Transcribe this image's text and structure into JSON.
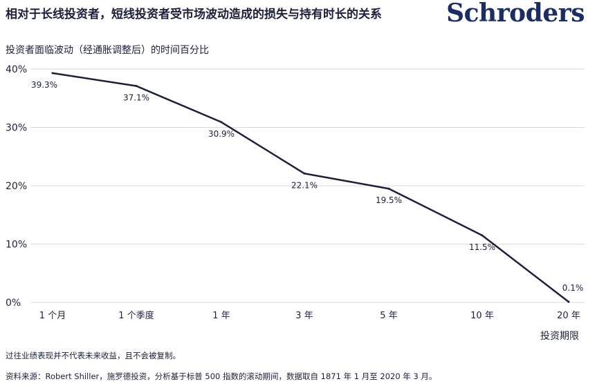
{
  "header": {
    "title": "相对于长线投资者，短线投资者受市场波动造成的损失与持有时长的关系",
    "logo_text": "Schroders"
  },
  "footer": {
    "note": "过往业绩表现并不代表未来收益，且不会被复制。",
    "source": "资料来源：Robert Shiller，施罗德投资，分析基于标普 500 指数的滚动期间，数据取自 1871 年 1 月至 2020 年 3 月。"
  },
  "colors": {
    "line": "#1b1f3b",
    "grid": "#d9d9d9",
    "text": "#1b1f3b",
    "logo": "#1b2d62"
  },
  "chart_data": {
    "type": "line",
    "ylabel": "投资者面临波动（经通胀调整后）的时间百分比",
    "xlabel": "投资期限",
    "categories": [
      "1 个月",
      "1 个季度",
      "1 年",
      "3 年",
      "5 年",
      "10 年",
      "20 年"
    ],
    "values": [
      39.3,
      37.1,
      30.9,
      22.1,
      19.5,
      11.5,
      0.1
    ],
    "data_labels": [
      "39.3%",
      "37.1%",
      "30.9%",
      "22.1%",
      "19.5%",
      "11.5%",
      "0.1%"
    ],
    "ylim": [
      0,
      40
    ],
    "yticks": [
      0,
      10,
      20,
      30,
      40
    ],
    "ytick_labels": [
      "0%",
      "10%",
      "20%",
      "30%",
      "40%"
    ],
    "grid": true
  }
}
